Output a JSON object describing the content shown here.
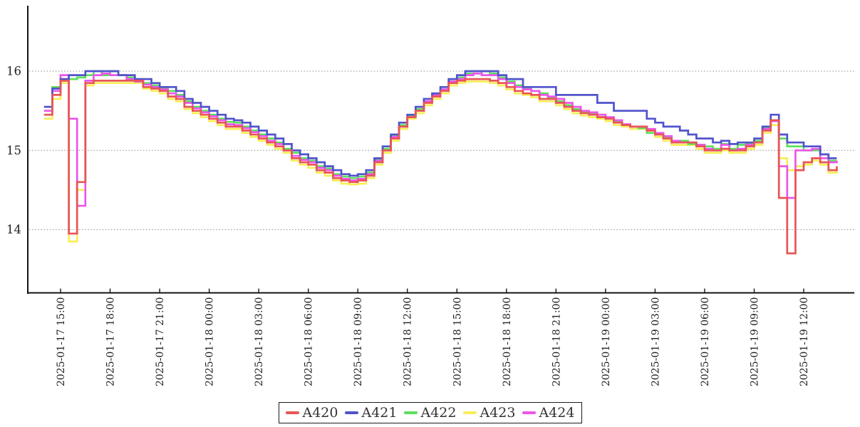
{
  "chart_data": {
    "type": "line",
    "title": "",
    "style": "step-after",
    "grid": "horizontal-dotted",
    "legend_position": "bottom-center",
    "x_axis": {
      "reference": "2025-01-17 15:00",
      "tick_hours": [
        0,
        3,
        6,
        9,
        12,
        15,
        18,
        21,
        24,
        27,
        30,
        33,
        36,
        39,
        42,
        45
      ],
      "tick_labels": [
        "2025-01-17 15:00",
        "2025-01-17 18:00",
        "2025-01-17 21:00",
        "2025-01-18 00:00",
        "2025-01-18 03:00",
        "2025-01-18 06:00",
        "2025-01-18 09:00",
        "2025-01-18 12:00",
        "2025-01-18 15:00",
        "2025-01-18 18:00",
        "2025-01-18 21:00",
        "2025-01-19 00:00",
        "2025-01-19 03:00",
        "2025-01-19 06:00",
        "2025-01-19 09:00",
        "2025-01-19 12:00"
      ],
      "label_rotation_deg": 90
    },
    "y_axis": {
      "tick_values": [
        16,
        15,
        14
      ],
      "tick_labels": [
        "16",
        "15",
        "14"
      ],
      "range": [
        13.2,
        16.83
      ]
    },
    "x_start_hour": -1.0,
    "x_step_hours": 0.5,
    "draw_order": [
      "A423",
      "A422",
      "A424",
      "A421",
      "A420"
    ],
    "series": [
      {
        "name": "A420",
        "color": "#e85555",
        "values": [
          15.45,
          15.7,
          15.88,
          13.95,
          14.6,
          15.85,
          15.88,
          15.88,
          15.88,
          15.88,
          15.88,
          15.88,
          15.8,
          15.78,
          15.75,
          15.68,
          15.65,
          15.55,
          15.5,
          15.45,
          15.4,
          15.35,
          15.3,
          15.3,
          15.25,
          15.2,
          15.15,
          15.1,
          15.05,
          15.0,
          14.9,
          14.85,
          14.82,
          14.75,
          14.72,
          14.65,
          14.62,
          14.6,
          14.62,
          14.68,
          14.85,
          15.0,
          15.15,
          15.3,
          15.42,
          15.5,
          15.6,
          15.68,
          15.75,
          15.85,
          15.88,
          15.9,
          15.9,
          15.9,
          15.88,
          15.85,
          15.8,
          15.75,
          15.72,
          15.7,
          15.65,
          15.65,
          15.6,
          15.55,
          15.5,
          15.47,
          15.45,
          15.42,
          15.4,
          15.35,
          15.32,
          15.3,
          15.3,
          15.25,
          15.2,
          15.15,
          15.1,
          15.1,
          15.1,
          15.05,
          15.0,
          15.0,
          15.02,
          15.0,
          15.0,
          15.05,
          15.1,
          15.25,
          15.38,
          14.4,
          13.7,
          14.75,
          14.85,
          14.9,
          14.85,
          14.75,
          14.8
        ]
      },
      {
        "name": "A421",
        "color": "#5153cb",
        "values": [
          15.55,
          15.78,
          15.9,
          15.95,
          15.95,
          16.0,
          16.0,
          16.0,
          16.0,
          15.95,
          15.95,
          15.9,
          15.9,
          15.85,
          15.8,
          15.8,
          15.75,
          15.65,
          15.6,
          15.55,
          15.5,
          15.45,
          15.4,
          15.38,
          15.35,
          15.3,
          15.25,
          15.2,
          15.15,
          15.08,
          15.0,
          14.95,
          14.9,
          14.85,
          14.8,
          14.75,
          14.7,
          14.68,
          14.7,
          14.75,
          14.9,
          15.05,
          15.2,
          15.35,
          15.45,
          15.55,
          15.65,
          15.72,
          15.8,
          15.9,
          15.95,
          16.0,
          16.0,
          16.0,
          16.0,
          15.95,
          15.9,
          15.9,
          15.8,
          15.8,
          15.8,
          15.8,
          15.7,
          15.7,
          15.7,
          15.7,
          15.7,
          15.6,
          15.6,
          15.5,
          15.5,
          15.5,
          15.5,
          15.4,
          15.35,
          15.3,
          15.3,
          15.25,
          15.2,
          15.15,
          15.15,
          15.1,
          15.12,
          15.08,
          15.1,
          15.1,
          15.15,
          15.3,
          15.45,
          15.2,
          15.1,
          15.1,
          15.05,
          15.05,
          14.95,
          14.9,
          14.9
        ]
      },
      {
        "name": "A422",
        "color": "#5cdf5c",
        "values": [
          15.5,
          15.8,
          15.88,
          15.9,
          15.92,
          15.95,
          16.0,
          15.95,
          16.0,
          15.95,
          15.92,
          15.88,
          15.85,
          15.82,
          15.78,
          15.75,
          15.7,
          15.62,
          15.55,
          15.5,
          15.45,
          15.4,
          15.36,
          15.35,
          15.3,
          15.25,
          15.2,
          15.15,
          15.1,
          15.02,
          14.97,
          14.9,
          14.87,
          14.8,
          14.77,
          14.7,
          14.67,
          14.65,
          14.67,
          14.72,
          14.88,
          15.02,
          15.18,
          15.32,
          15.43,
          15.52,
          15.62,
          15.7,
          15.77,
          15.87,
          15.92,
          15.97,
          15.97,
          16.0,
          15.97,
          15.92,
          15.87,
          15.82,
          15.78,
          15.75,
          15.72,
          15.67,
          15.62,
          15.57,
          15.52,
          15.48,
          15.47,
          15.42,
          15.4,
          15.37,
          15.32,
          15.3,
          15.28,
          15.22,
          15.2,
          15.17,
          15.12,
          15.12,
          15.08,
          15.07,
          15.05,
          15.02,
          15.08,
          15.02,
          15.07,
          15.08,
          15.12,
          15.28,
          15.38,
          15.15,
          15.05,
          15.05,
          15.0,
          15.0,
          14.95,
          14.87,
          14.87
        ]
      },
      {
        "name": "A423",
        "color": "#f7ee58",
        "values": [
          15.4,
          15.65,
          15.85,
          13.85,
          14.5,
          15.82,
          15.85,
          15.85,
          15.85,
          15.85,
          15.85,
          15.85,
          15.78,
          15.75,
          15.72,
          15.65,
          15.62,
          15.52,
          15.47,
          15.42,
          15.37,
          15.32,
          15.27,
          15.27,
          15.22,
          15.17,
          15.12,
          15.07,
          15.02,
          14.97,
          14.87,
          14.82,
          14.78,
          14.72,
          14.68,
          14.62,
          14.58,
          14.57,
          14.58,
          14.65,
          14.82,
          14.97,
          15.12,
          15.27,
          15.4,
          15.47,
          15.57,
          15.65,
          15.72,
          15.82,
          15.85,
          15.87,
          15.87,
          15.87,
          15.85,
          15.82,
          15.77,
          15.72,
          15.7,
          15.67,
          15.62,
          15.62,
          15.57,
          15.52,
          15.47,
          15.44,
          15.42,
          15.4,
          15.37,
          15.32,
          15.3,
          15.27,
          15.27,
          15.22,
          15.17,
          15.12,
          15.07,
          15.07,
          15.07,
          15.02,
          14.97,
          14.97,
          15.0,
          14.97,
          14.97,
          15.02,
          15.07,
          15.22,
          15.32,
          14.9,
          14.75,
          14.8,
          14.82,
          14.87,
          14.82,
          14.72,
          14.77
        ]
      },
      {
        "name": "A424",
        "color": "#ec55ea",
        "values": [
          15.5,
          15.75,
          15.95,
          15.4,
          14.3,
          15.88,
          15.95,
          15.97,
          15.95,
          15.95,
          15.9,
          15.87,
          15.83,
          15.8,
          15.77,
          15.72,
          15.68,
          15.6,
          15.53,
          15.48,
          15.43,
          15.38,
          15.33,
          15.32,
          15.28,
          15.23,
          15.18,
          15.12,
          15.08,
          15.0,
          14.93,
          14.88,
          14.85,
          14.78,
          14.75,
          14.68,
          14.64,
          14.62,
          14.64,
          14.7,
          14.87,
          15.0,
          15.17,
          15.3,
          15.42,
          15.5,
          15.62,
          15.7,
          15.77,
          15.87,
          15.9,
          15.95,
          15.97,
          15.95,
          15.95,
          15.9,
          15.85,
          15.8,
          15.77,
          15.75,
          15.7,
          15.68,
          15.65,
          15.6,
          15.55,
          15.5,
          15.48,
          15.45,
          15.42,
          15.38,
          15.33,
          15.3,
          15.3,
          15.27,
          15.22,
          15.18,
          15.12,
          15.1,
          15.1,
          15.07,
          15.02,
          15.0,
          15.07,
          15.0,
          15.02,
          15.07,
          15.1,
          15.27,
          15.37,
          14.8,
          14.4,
          15.0,
          15.0,
          15.02,
          14.9,
          14.85,
          14.87
        ]
      }
    ]
  },
  "legend": {
    "labels": [
      "A420",
      "A421",
      "A422",
      "A423",
      "A424"
    ]
  }
}
